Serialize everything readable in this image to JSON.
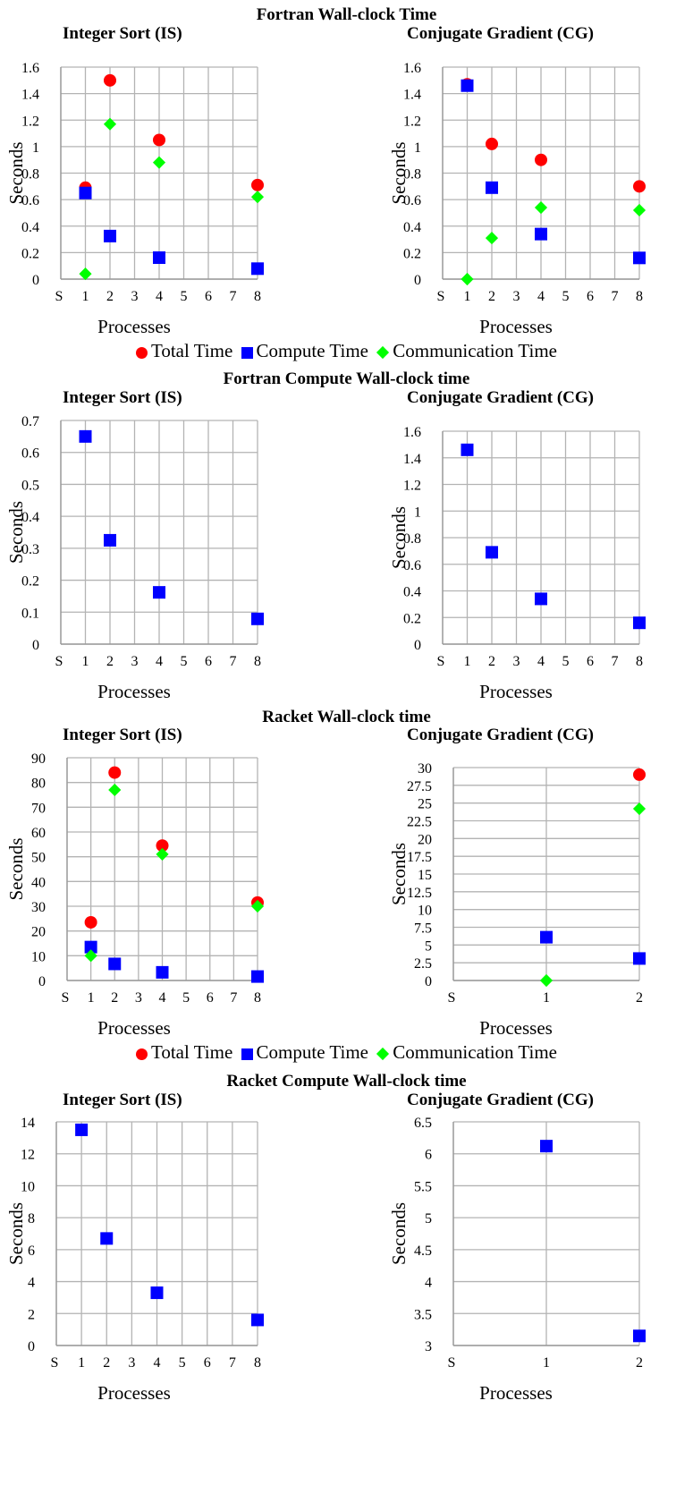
{
  "sections": [
    "Fortran Wall-clock Time",
    "Fortran Compute Wall-clock time",
    "Racket Wall-clock time",
    "Racket Compute Wall-clock time"
  ],
  "legend": {
    "total": "Total Time",
    "compute": "Compute Time",
    "comm": "Communication Time"
  },
  "colors": {
    "total": "#ff0000",
    "compute": "#0000ff",
    "comm": "#00ff00",
    "grid": "#b3b3b3"
  },
  "chart_data": [
    {
      "type": "scatter",
      "title": "Integer Sort (IS)",
      "xlabel": "Processes",
      "ylabel": "Seconds",
      "xticks": [
        "S",
        "1",
        "2",
        "3",
        "4",
        "5",
        "6",
        "7",
        "8"
      ],
      "ylim": [
        0,
        1.6
      ],
      "yticks": [
        "0",
        "0.2",
        "0.4",
        "0.6",
        "0.8",
        "1",
        "1.2",
        "1.4",
        "1.6"
      ],
      "series": [
        {
          "name": "Total Time",
          "x": [
            1,
            2,
            4,
            8
          ],
          "y": [
            0.69,
            1.5,
            1.05,
            0.71
          ]
        },
        {
          "name": "Compute Time",
          "x": [
            1,
            2,
            4,
            8
          ],
          "y": [
            0.65,
            0.325,
            0.162,
            0.079
          ]
        },
        {
          "name": "Communication Time",
          "x": [
            1,
            2,
            4,
            8
          ],
          "y": [
            0.04,
            1.17,
            0.88,
            0.62
          ]
        }
      ]
    },
    {
      "type": "scatter",
      "title": "Conjugate Gradient (CG)",
      "xlabel": "Processes",
      "ylabel": "Seconds",
      "xticks": [
        "S",
        "1",
        "2",
        "3",
        "4",
        "5",
        "6",
        "7",
        "8"
      ],
      "ylim": [
        0,
        1.6
      ],
      "yticks": [
        "0",
        "0.2",
        "0.4",
        "0.6",
        "0.8",
        "1",
        "1.2",
        "1.4",
        "1.6"
      ],
      "series": [
        {
          "name": "Total Time",
          "x": [
            1,
            2,
            4,
            8
          ],
          "y": [
            1.47,
            1.02,
            0.9,
            0.7
          ]
        },
        {
          "name": "Compute Time",
          "x": [
            1,
            2,
            4,
            8
          ],
          "y": [
            1.46,
            0.69,
            0.34,
            0.16
          ]
        },
        {
          "name": "Communication Time",
          "x": [
            1,
            2,
            4,
            8
          ],
          "y": [
            0.0,
            0.31,
            0.54,
            0.52
          ]
        }
      ]
    },
    {
      "type": "scatter",
      "title": "Integer Sort (IS)",
      "xlabel": "Processes",
      "ylabel": "Seconds",
      "xticks": [
        "S",
        "1",
        "2",
        "3",
        "4",
        "5",
        "6",
        "7",
        "8"
      ],
      "ylim": [
        0,
        0.7
      ],
      "yticks": [
        "0",
        "0.1",
        "0.2",
        "0.3",
        "0.4",
        "0.5",
        "0.6",
        "0.7"
      ],
      "series": [
        {
          "name": "Compute Time",
          "x": [
            1,
            2,
            4,
            8
          ],
          "y": [
            0.65,
            0.325,
            0.162,
            0.079
          ]
        }
      ]
    },
    {
      "type": "scatter",
      "title": "Conjugate Gradient (CG)",
      "xlabel": "Processes",
      "ylabel": "Seconds",
      "xticks": [
        "S",
        "1",
        "2",
        "3",
        "4",
        "5",
        "6",
        "7",
        "8"
      ],
      "ylim": [
        0,
        1.6
      ],
      "yticks": [
        "0",
        "0.2",
        "0.4",
        "0.6",
        "0.8",
        "1",
        "1.2",
        "1.4",
        "1.6"
      ],
      "series": [
        {
          "name": "Compute Time",
          "x": [
            1,
            2,
            4,
            8
          ],
          "y": [
            1.46,
            0.69,
            0.34,
            0.16
          ]
        }
      ]
    },
    {
      "type": "scatter",
      "title": "Integer Sort (IS)",
      "xlabel": "Processes",
      "ylabel": "Seconds",
      "xticks": [
        "S",
        "1",
        "2",
        "3",
        "4",
        "5",
        "6",
        "7",
        "8"
      ],
      "ylim": [
        0,
        90
      ],
      "yticks": [
        "0",
        "10",
        "20",
        "30",
        "40",
        "50",
        "60",
        "70",
        "80",
        "90"
      ],
      "series": [
        {
          "name": "Total Time",
          "x": [
            1,
            2,
            4,
            8
          ],
          "y": [
            23.5,
            84,
            54.5,
            31.5
          ]
        },
        {
          "name": "Compute Time",
          "x": [
            1,
            2,
            4,
            8
          ],
          "y": [
            13.5,
            6.7,
            3.3,
            1.6
          ]
        },
        {
          "name": "Communication Time",
          "x": [
            1,
            2,
            4,
            8
          ],
          "y": [
            10,
            77,
            51,
            30
          ]
        }
      ]
    },
    {
      "type": "scatter",
      "title": "Conjugate Gradient (CG)",
      "xlabel": "Processes",
      "ylabel": "Seconds",
      "xticks": [
        "S",
        "1",
        "2"
      ],
      "ylim": [
        0,
        30
      ],
      "yticks": [
        "0",
        "2.5",
        "5",
        "7.5",
        "10",
        "12.5",
        "15",
        "17.5",
        "20",
        "22.5",
        "25",
        "27.5",
        "30"
      ],
      "series": [
        {
          "name": "Total Time",
          "x": [
            2
          ],
          "y": [
            29
          ]
        },
        {
          "name": "Compute Time",
          "x": [
            1,
            2
          ],
          "y": [
            6.1,
            3.1
          ]
        },
        {
          "name": "Communication Time",
          "x": [
            1,
            2
          ],
          "y": [
            0,
            24.2
          ]
        }
      ]
    },
    {
      "type": "scatter",
      "title": "Integer Sort (IS)",
      "xlabel": "Processes",
      "ylabel": "Seconds",
      "xticks": [
        "S",
        "1",
        "2",
        "3",
        "4",
        "5",
        "6",
        "7",
        "8"
      ],
      "ylim": [
        0,
        14
      ],
      "yticks": [
        "0",
        "2",
        "4",
        "6",
        "8",
        "10",
        "12",
        "14"
      ],
      "series": [
        {
          "name": "Compute Time",
          "x": [
            1,
            2,
            4,
            8
          ],
          "y": [
            13.5,
            6.7,
            3.3,
            1.6
          ]
        }
      ]
    },
    {
      "type": "scatter",
      "title": "Conjugate Gradient (CG)",
      "xlabel": "Processes",
      "ylabel": "Seconds",
      "xticks": [
        "S",
        "1",
        "2"
      ],
      "ylim": [
        3,
        6.5
      ],
      "yticks": [
        "3",
        "3.5",
        "4",
        "4.5",
        "5",
        "5.5",
        "6",
        "6.5"
      ],
      "series": [
        {
          "name": "Compute Time",
          "x": [
            1,
            2
          ],
          "y": [
            6.12,
            3.15
          ]
        }
      ]
    }
  ]
}
